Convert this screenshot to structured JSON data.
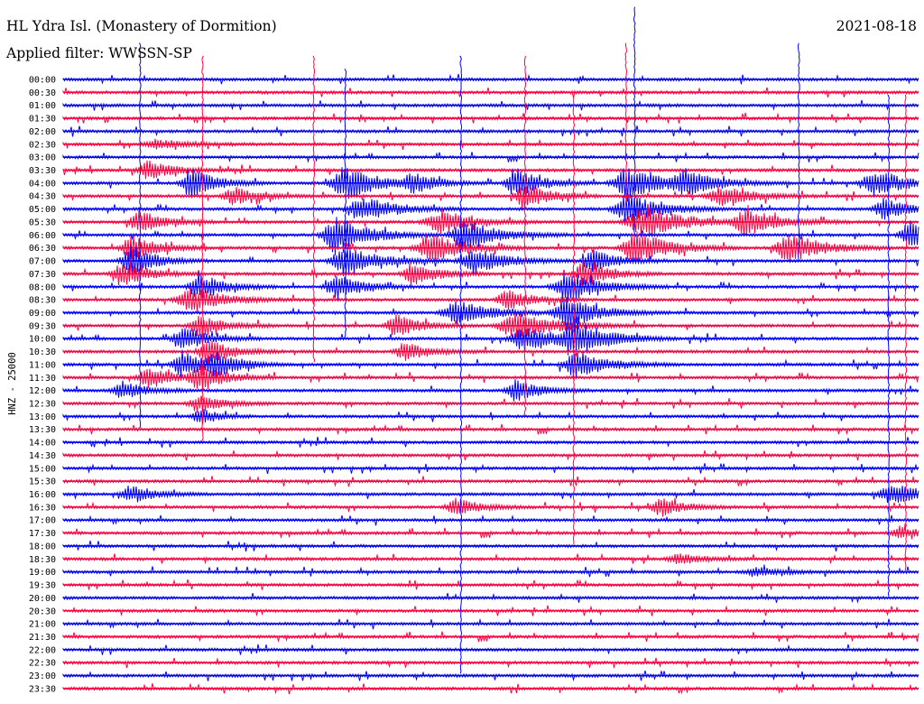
{
  "header": {
    "title": "HL Ydra Isl. (Monastery of Dormition)",
    "date": "2021-08-18",
    "filter_label": "Applied filter: WWSSN-SP"
  },
  "chart_data": {
    "type": "line",
    "title": "HL Ydra Isl. (Monastery of Dormition)",
    "subtitle": "Applied filter: WWSSN-SP",
    "ylabel": "HNZ - 25000",
    "xlabel": "",
    "grid": false,
    "legend": "none",
    "row_labels": [
      "00:00",
      "00:30",
      "01:00",
      "01:30",
      "02:00",
      "02:30",
      "03:00",
      "03:30",
      "04:00",
      "04:30",
      "05:00",
      "05:30",
      "06:00",
      "06:30",
      "07:00",
      "07:30",
      "08:00",
      "08:30",
      "09:00",
      "09:30",
      "10:00",
      "10:30",
      "11:00",
      "11:30",
      "12:00",
      "12:30",
      "13:00",
      "13:30",
      "14:00",
      "14:30",
      "15:00",
      "15:30",
      "16:00",
      "16:30",
      "17:00",
      "17:30",
      "18:00",
      "18:30",
      "19:00",
      "19:30",
      "20:00",
      "20:30",
      "21:00",
      "21:30",
      "22:00",
      "22:30",
      "23:00",
      "23:30"
    ],
    "series_colors": [
      "#0000ff",
      "#ff0040"
    ],
    "burst_events": [
      {
        "row": 5,
        "pos": 0.11,
        "amp": 4,
        "width": 0.04
      },
      {
        "row": 7,
        "pos": 0.1,
        "amp": 9,
        "width": 0.03
      },
      {
        "row": 8,
        "pos": 0.15,
        "amp": 14,
        "width": 0.03
      },
      {
        "row": 8,
        "pos": 0.33,
        "amp": 16,
        "width": 0.04
      },
      {
        "row": 8,
        "pos": 0.41,
        "amp": 9,
        "width": 0.03
      },
      {
        "row": 8,
        "pos": 0.53,
        "amp": 14,
        "width": 0.03
      },
      {
        "row": 8,
        "pos": 0.66,
        "amp": 16,
        "width": 0.04
      },
      {
        "row": 8,
        "pos": 0.73,
        "amp": 10,
        "width": 0.04
      },
      {
        "row": 8,
        "pos": 0.95,
        "amp": 12,
        "width": 0.04
      },
      {
        "row": 9,
        "pos": 0.2,
        "amp": 8,
        "width": 0.03
      },
      {
        "row": 9,
        "pos": 0.54,
        "amp": 12,
        "width": 0.03
      },
      {
        "row": 9,
        "pos": 0.77,
        "amp": 9,
        "width": 0.04
      },
      {
        "row": 10,
        "pos": 0.35,
        "amp": 12,
        "width": 0.04
      },
      {
        "row": 10,
        "pos": 0.66,
        "amp": 14,
        "width": 0.04
      },
      {
        "row": 10,
        "pos": 0.96,
        "amp": 10,
        "width": 0.03
      },
      {
        "row": 11,
        "pos": 0.09,
        "amp": 10,
        "width": 0.03
      },
      {
        "row": 11,
        "pos": 0.44,
        "amp": 10,
        "width": 0.04
      },
      {
        "row": 11,
        "pos": 0.68,
        "amp": 14,
        "width": 0.05
      },
      {
        "row": 11,
        "pos": 0.8,
        "amp": 12,
        "width": 0.04
      },
      {
        "row": 12,
        "pos": 0.32,
        "amp": 18,
        "width": 0.04
      },
      {
        "row": 12,
        "pos": 0.47,
        "amp": 14,
        "width": 0.04
      },
      {
        "row": 12,
        "pos": 0.99,
        "amp": 12,
        "width": 0.03
      },
      {
        "row": 13,
        "pos": 0.08,
        "amp": 12,
        "width": 0.03
      },
      {
        "row": 13,
        "pos": 0.43,
        "amp": 14,
        "width": 0.04
      },
      {
        "row": 13,
        "pos": 0.67,
        "amp": 16,
        "width": 0.04
      },
      {
        "row": 13,
        "pos": 0.85,
        "amp": 14,
        "width": 0.04
      },
      {
        "row": 14,
        "pos": 0.08,
        "amp": 14,
        "width": 0.03
      },
      {
        "row": 14,
        "pos": 0.33,
        "amp": 14,
        "width": 0.04
      },
      {
        "row": 14,
        "pos": 0.48,
        "amp": 12,
        "width": 0.04
      },
      {
        "row": 14,
        "pos": 0.62,
        "amp": 10,
        "width": 0.03
      },
      {
        "row": 15,
        "pos": 0.07,
        "amp": 12,
        "width": 0.03
      },
      {
        "row": 15,
        "pos": 0.41,
        "amp": 12,
        "width": 0.03
      },
      {
        "row": 15,
        "pos": 0.61,
        "amp": 12,
        "width": 0.03
      },
      {
        "row": 16,
        "pos": 0.16,
        "amp": 12,
        "width": 0.03
      },
      {
        "row": 16,
        "pos": 0.32,
        "amp": 12,
        "width": 0.03
      },
      {
        "row": 16,
        "pos": 0.59,
        "amp": 14,
        "width": 0.04
      },
      {
        "row": 17,
        "pos": 0.15,
        "amp": 12,
        "width": 0.04
      },
      {
        "row": 17,
        "pos": 0.52,
        "amp": 10,
        "width": 0.03
      },
      {
        "row": 18,
        "pos": 0.46,
        "amp": 12,
        "width": 0.04
      },
      {
        "row": 18,
        "pos": 0.59,
        "amp": 14,
        "width": 0.04
      },
      {
        "row": 19,
        "pos": 0.39,
        "amp": 10,
        "width": 0.03
      },
      {
        "row": 19,
        "pos": 0.53,
        "amp": 12,
        "width": 0.05
      },
      {
        "row": 19,
        "pos": 0.16,
        "amp": 10,
        "width": 0.03
      },
      {
        "row": 20,
        "pos": 0.14,
        "amp": 12,
        "width": 0.03
      },
      {
        "row": 20,
        "pos": 0.54,
        "amp": 12,
        "width": 0.04
      },
      {
        "row": 20,
        "pos": 0.6,
        "amp": 16,
        "width": 0.04
      },
      {
        "row": 21,
        "pos": 0.17,
        "amp": 12,
        "width": 0.03
      },
      {
        "row": 21,
        "pos": 0.4,
        "amp": 8,
        "width": 0.03
      },
      {
        "row": 22,
        "pos": 0.14,
        "amp": 12,
        "width": 0.03
      },
      {
        "row": 22,
        "pos": 0.18,
        "amp": 10,
        "width": 0.03
      },
      {
        "row": 22,
        "pos": 0.6,
        "amp": 12,
        "width": 0.04
      },
      {
        "row": 23,
        "pos": 0.1,
        "amp": 10,
        "width": 0.03
      },
      {
        "row": 23,
        "pos": 0.16,
        "amp": 12,
        "width": 0.03
      },
      {
        "row": 24,
        "pos": 0.07,
        "amp": 8,
        "width": 0.03
      },
      {
        "row": 24,
        "pos": 0.53,
        "amp": 10,
        "width": 0.03
      },
      {
        "row": 25,
        "pos": 0.16,
        "amp": 8,
        "width": 0.03
      },
      {
        "row": 26,
        "pos": 0.16,
        "amp": 8,
        "width": 0.02
      },
      {
        "row": 32,
        "pos": 0.08,
        "amp": 8,
        "width": 0.03
      },
      {
        "row": 32,
        "pos": 0.97,
        "amp": 9,
        "width": 0.04
      },
      {
        "row": 33,
        "pos": 0.46,
        "amp": 8,
        "width": 0.03
      },
      {
        "row": 33,
        "pos": 0.7,
        "amp": 8,
        "width": 0.03
      },
      {
        "row": 35,
        "pos": 0.98,
        "amp": 5,
        "width": 0.03
      },
      {
        "row": 37,
        "pos": 0.72,
        "amp": 5,
        "width": 0.03
      },
      {
        "row": 38,
        "pos": 0.81,
        "amp": 4,
        "width": 0.03
      }
    ],
    "spikes": [
      {
        "pos": 0.668,
        "top_row": 0,
        "bottom_row": 12
      },
      {
        "pos": 0.658,
        "top_row": 0,
        "bottom_row": 10
      },
      {
        "pos": 0.09,
        "top_row": 0,
        "bottom_row": 27
      },
      {
        "pos": 0.163,
        "top_row": 1,
        "bottom_row": 28
      },
      {
        "pos": 0.465,
        "top_row": 1,
        "bottom_row": 46
      },
      {
        "pos": 0.597,
        "top_row": 4,
        "bottom_row": 36
      },
      {
        "pos": 0.86,
        "top_row": 0,
        "bottom_row": 14
      },
      {
        "pos": 0.293,
        "top_row": 1,
        "bottom_row": 22
      },
      {
        "pos": 0.33,
        "top_row": 2,
        "bottom_row": 20
      },
      {
        "pos": 0.54,
        "top_row": 1,
        "bottom_row": 26
      },
      {
        "pos": 0.965,
        "top_row": 4,
        "bottom_row": 40
      },
      {
        "pos": 0.985,
        "top_row": 4,
        "bottom_row": 38
      }
    ]
  }
}
